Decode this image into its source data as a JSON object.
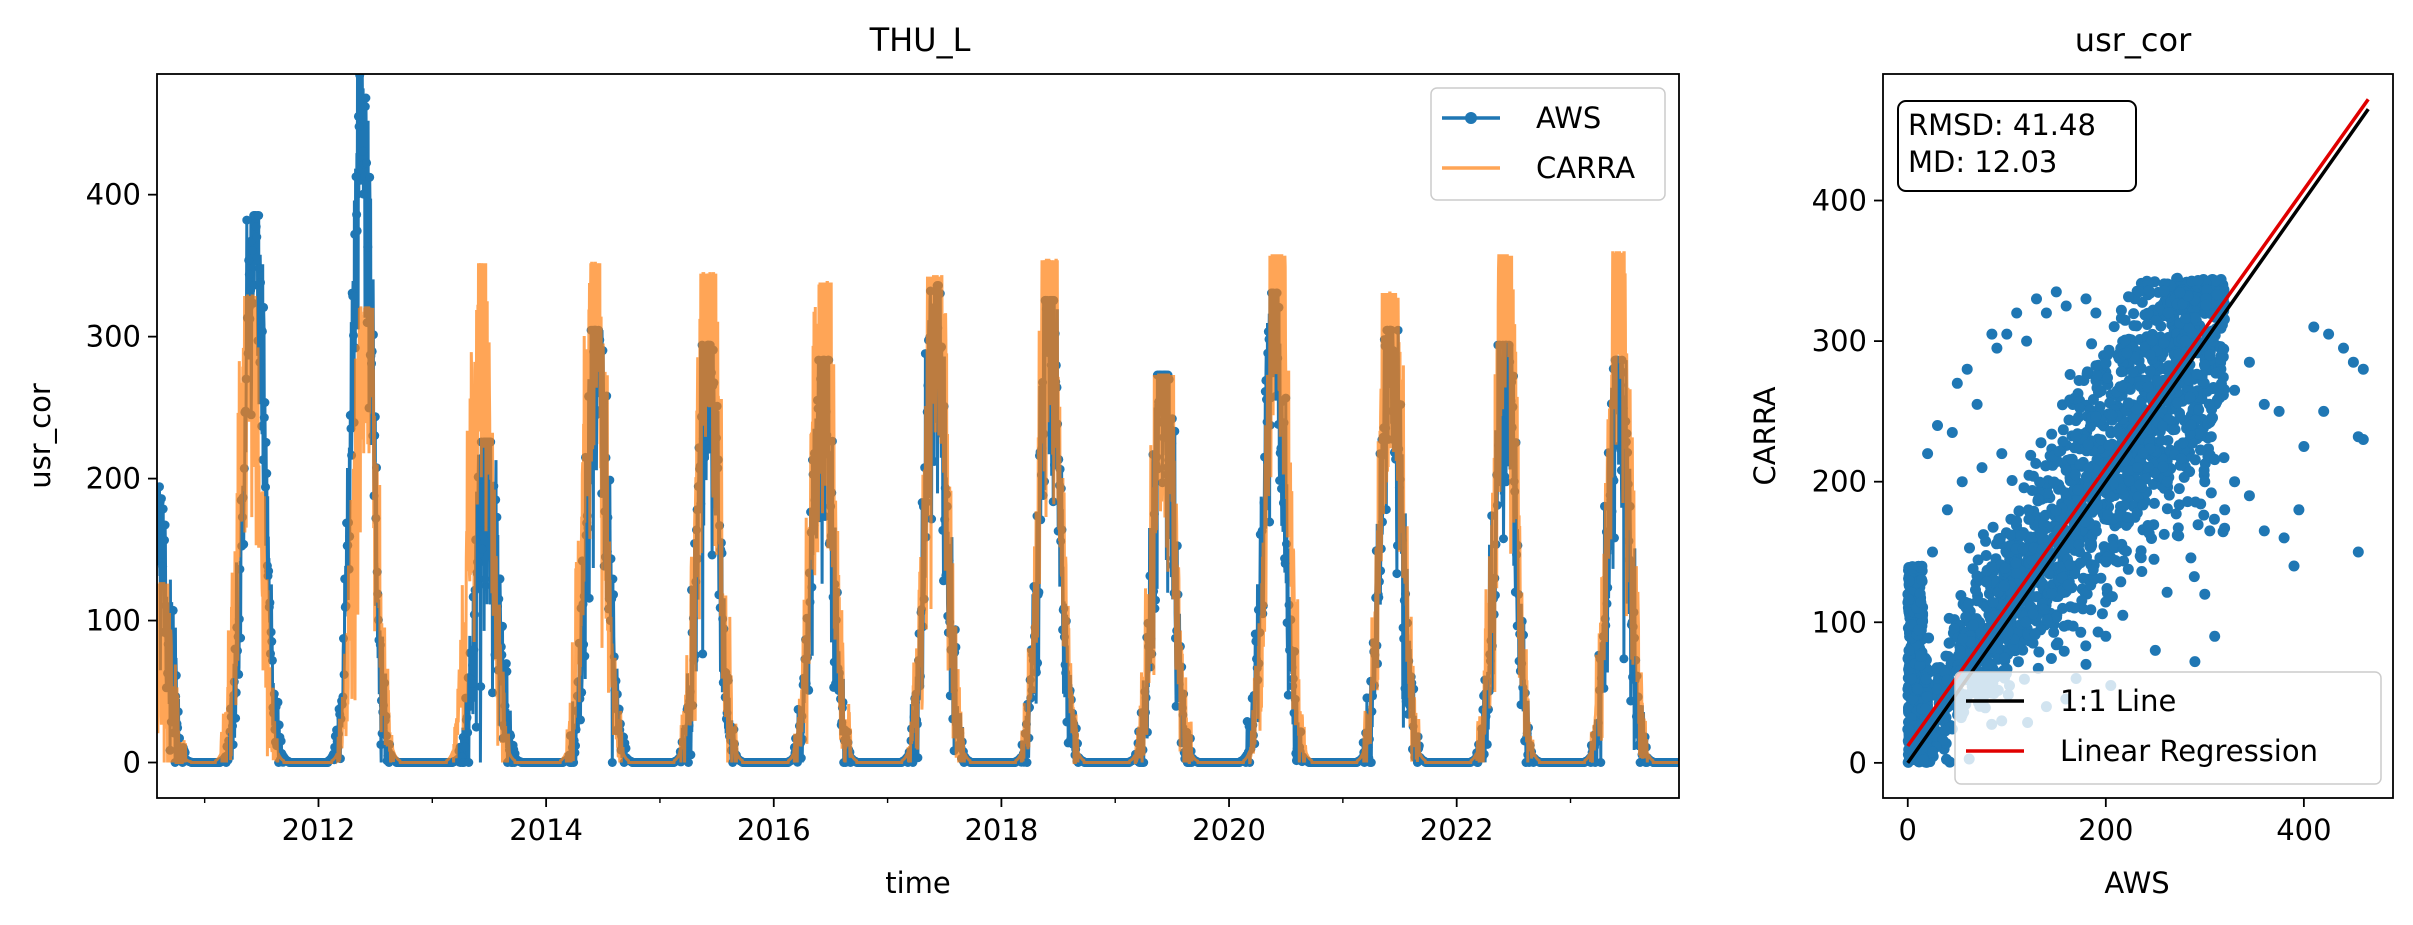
{
  "chart_data": [
    {
      "type": "line",
      "title": "THU_L",
      "xlabel": "time",
      "ylabel": "usr_cor",
      "xlim": [
        "2010-08-01",
        "2023-12-15"
      ],
      "ylim": [
        -25,
        485
      ],
      "x_ticks": [
        "2012",
        "2014",
        "2016",
        "2018",
        "2020",
        "2022"
      ],
      "y_ticks": [
        0,
        100,
        200,
        300,
        400
      ],
      "grid": false,
      "legend": "top-right",
      "series": [
        {
          "name": "AWS",
          "color": "#1f77b4",
          "marker": "circle",
          "seasonal_peaks": [
            {
              "date": "2010-08-01",
              "value": 185
            },
            {
              "date": "2011-06-10",
              "value": 367
            },
            {
              "date": "2012-05-20",
              "value": 467
            },
            {
              "date": "2013-06-25",
              "value": 215
            },
            {
              "date": "2014-06-15",
              "value": 290
            },
            {
              "date": "2015-06-05",
              "value": 280
            },
            {
              "date": "2016-06-05",
              "value": 270
            },
            {
              "date": "2017-06-05",
              "value": 320
            },
            {
              "date": "2018-06-05",
              "value": 310
            },
            {
              "date": "2019-06-05",
              "value": 260
            },
            {
              "date": "2020-05-25",
              "value": 315
            },
            {
              "date": "2021-06-05",
              "value": 290
            },
            {
              "date": "2022-06-05",
              "value": 280
            },
            {
              "date": "2023-06-05",
              "value": 270
            }
          ]
        },
        {
          "name": "CARRA",
          "color": "#ff7f0e",
          "seasonal_peaks": [
            {
              "date": "2010-08-01",
              "value": 120
            },
            {
              "date": "2011-05-25",
              "value": 313
            },
            {
              "date": "2012-06-01",
              "value": 305
            },
            {
              "date": "2013-06-05",
              "value": 335
            },
            {
              "date": "2014-06-05",
              "value": 335
            },
            {
              "date": "2015-06-05",
              "value": 328
            },
            {
              "date": "2016-06-05",
              "value": 322
            },
            {
              "date": "2017-06-05",
              "value": 326
            },
            {
              "date": "2018-06-05",
              "value": 337
            },
            {
              "date": "2019-06-05",
              "value": 260
            },
            {
              "date": "2020-06-05",
              "value": 340
            },
            {
              "date": "2021-06-05",
              "value": 315
            },
            {
              "date": "2022-06-05",
              "value": 340
            },
            {
              "date": "2023-06-05",
              "value": 342
            }
          ]
        }
      ]
    },
    {
      "type": "scatter",
      "title": "usr_cor",
      "xlabel": "AWS",
      "ylabel": "CARRA",
      "xlim": [
        -25,
        490
      ],
      "ylim": [
        -25,
        490
      ],
      "x_ticks": [
        0,
        200,
        400
      ],
      "y_ticks": [
        0,
        100,
        200,
        300,
        400
      ],
      "grid": false,
      "annotation": [
        "RMSD: 41.48",
        "MD: 12.03"
      ],
      "legend": "bottom-right",
      "points_color": "#1f77b4",
      "outliers": [
        [
          410,
          310
        ],
        [
          425,
          305
        ],
        [
          440,
          295
        ],
        [
          450,
          285
        ],
        [
          460,
          280
        ],
        [
          455,
          232
        ],
        [
          460,
          230
        ],
        [
          455,
          150
        ],
        [
          420,
          250
        ],
        [
          400,
          225
        ],
        [
          395,
          180
        ],
        [
          375,
          250
        ],
        [
          360,
          255
        ],
        [
          345,
          285
        ],
        [
          330,
          265
        ],
        [
          285,
          260
        ],
        [
          305,
          290
        ],
        [
          280,
          300
        ],
        [
          300,
          200
        ],
        [
          330,
          200
        ],
        [
          320,
          180
        ],
        [
          345,
          190
        ],
        [
          305,
          165
        ],
        [
          300,
          120
        ],
        [
          310,
          90
        ],
        [
          360,
          165
        ],
        [
          380,
          160
        ],
        [
          390,
          140
        ],
        [
          245,
          290
        ],
        [
          250,
          80
        ],
        [
          200,
          90
        ],
        [
          180,
          70
        ],
        [
          170,
          60
        ],
        [
          205,
          55
        ],
        [
          140,
          40
        ],
        [
          290,
          72
        ],
        [
          95,
          220
        ],
        [
          75,
          210
        ],
        [
          110,
          320
        ],
        [
          85,
          305
        ],
        [
          90,
          295
        ],
        [
          60,
          280
        ],
        [
          50,
          270
        ],
        [
          30,
          240
        ],
        [
          20,
          220
        ],
        [
          55,
          200
        ],
        [
          40,
          180
        ],
        [
          25,
          150
        ],
        [
          130,
          330
        ],
        [
          140,
          320
        ],
        [
          100,
          305
        ],
        [
          160,
          325
        ],
        [
          180,
          330
        ],
        [
          190,
          320
        ],
        [
          70,
          255
        ],
        [
          45,
          235
        ],
        [
          120,
          300
        ],
        [
          150,
          335
        ]
      ],
      "lines": [
        {
          "name": "1:1 Line",
          "color": "#000000",
          "from": [
            0,
            0
          ],
          "to": [
            465,
            465
          ]
        },
        {
          "name": "Linear Regression",
          "color": "#e00000",
          "from": [
            0,
            12
          ],
          "to": [
            465,
            472
          ]
        }
      ]
    }
  ]
}
